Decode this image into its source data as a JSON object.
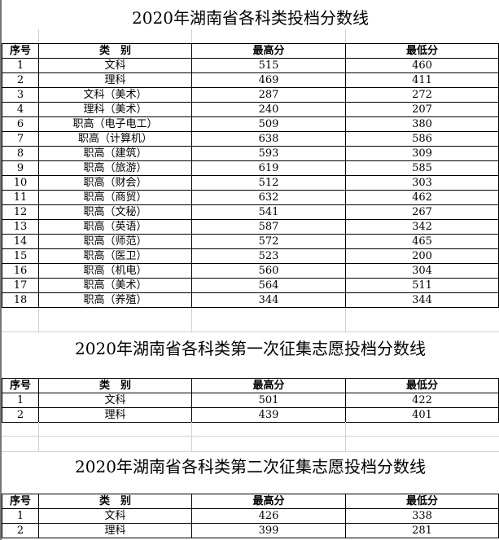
{
  "headers": {
    "no": "序号",
    "category": "类　别",
    "max": "最高分",
    "min": "最低分"
  },
  "sections": [
    {
      "title": "2020年湖南省各科类投档分数线",
      "rows": [
        [
          "1",
          "文科",
          "515",
          "460"
        ],
        [
          "2",
          "理科",
          "469",
          "411"
        ],
        [
          "3",
          "文科（美术）",
          "287",
          "272"
        ],
        [
          "4",
          "理科（美术）",
          "240",
          "207"
        ],
        [
          "6",
          "职高（电子电工）",
          "509",
          "380"
        ],
        [
          "7",
          "职高（计算机）",
          "638",
          "586"
        ],
        [
          "8",
          "职高（建筑）",
          "593",
          "309"
        ],
        [
          "9",
          "职高（旅游）",
          "619",
          "585"
        ],
        [
          "10",
          "职高（财会）",
          "512",
          "303"
        ],
        [
          "11",
          "职高（商贸）",
          "632",
          "462"
        ],
        [
          "12",
          "职高（文秘）",
          "541",
          "267"
        ],
        [
          "13",
          "职高（英语）",
          "587",
          "342"
        ],
        [
          "14",
          "职高（师范）",
          "572",
          "465"
        ],
        [
          "15",
          "职高（医卫）",
          "523",
          "200"
        ],
        [
          "16",
          "职高（机电）",
          "560",
          "304"
        ],
        [
          "17",
          "职高（美术）",
          "564",
          "511"
        ],
        [
          "18",
          "职高（养殖）",
          "344",
          "344"
        ]
      ]
    },
    {
      "title": "2020年湖南省各科类第一次征集志愿投档分数线",
      "rows": [
        [
          "1",
          "文科",
          "501",
          "422"
        ],
        [
          "2",
          "理科",
          "439",
          "401"
        ]
      ]
    },
    {
      "title": "2020年湖南省各科类第二次征集志愿投档分数线",
      "rows": [
        [
          "1",
          "文科",
          "426",
          "338"
        ],
        [
          "2",
          "理科",
          "399",
          "281"
        ]
      ]
    }
  ]
}
